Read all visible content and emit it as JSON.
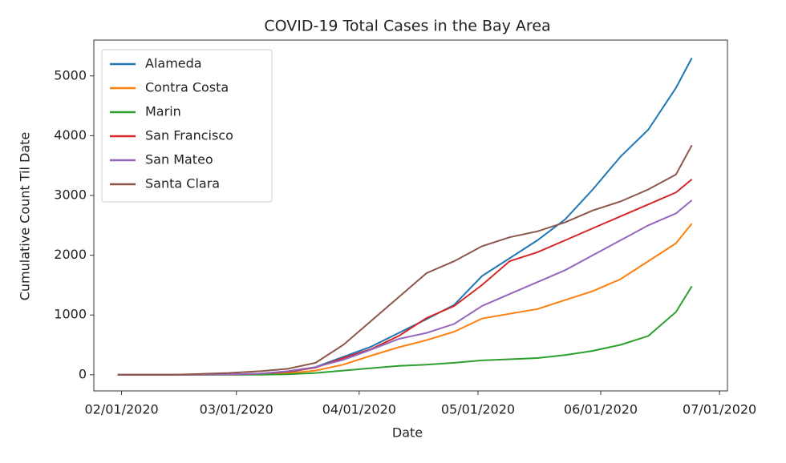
{
  "chart_data": {
    "type": "line",
    "title": "COVID-19 Total Cases in the Bay Area",
    "xlabel": "Date",
    "ylabel": "Cumulative Count Til Date",
    "x": [
      "2020-01-31",
      "2020-02-14",
      "2020-02-28",
      "2020-03-07",
      "2020-03-14",
      "2020-03-21",
      "2020-03-28",
      "2020-04-04",
      "2020-04-11",
      "2020-04-18",
      "2020-04-25",
      "2020-05-02",
      "2020-05-09",
      "2020-05-16",
      "2020-05-23",
      "2020-05-30",
      "2020-06-06",
      "2020-06-13",
      "2020-06-20",
      "2020-06-24"
    ],
    "series": [
      {
        "name": "Alameda",
        "color": "#1f77b4",
        "values": [
          0,
          0,
          5,
          15,
          40,
          130,
          300,
          470,
          700,
          930,
          1170,
          1650,
          1950,
          2250,
          2600,
          3100,
          3650,
          4100,
          4800,
          5300
        ]
      },
      {
        "name": "Contra Costa",
        "color": "#ff7f0e",
        "values": [
          0,
          0,
          3,
          10,
          25,
          70,
          170,
          320,
          460,
          580,
          720,
          940,
          1020,
          1100,
          1250,
          1400,
          1600,
          1900,
          2200,
          2530
        ]
      },
      {
        "name": "Marin",
        "color": "#2ca02c",
        "values": [
          0,
          0,
          0,
          2,
          8,
          30,
          70,
          110,
          150,
          170,
          200,
          240,
          260,
          280,
          330,
          400,
          500,
          650,
          1050,
          1480
        ]
      },
      {
        "name": "San Francisco",
        "color": "#d62728",
        "values": [
          0,
          0,
          5,
          20,
          50,
          120,
          280,
          430,
          650,
          950,
          1150,
          1500,
          1900,
          2050,
          2250,
          2450,
          2650,
          2850,
          3050,
          3270
        ]
      },
      {
        "name": "San Mateo",
        "color": "#9467bd",
        "values": [
          0,
          0,
          5,
          20,
          60,
          130,
          250,
          420,
          600,
          700,
          850,
          1150,
          1350,
          1550,
          1750,
          2000,
          2250,
          2500,
          2700,
          2920
        ]
      },
      {
        "name": "Santa Clara",
        "color": "#8c564b",
        "values": [
          0,
          0,
          30,
          60,
          100,
          200,
          500,
          900,
          1300,
          1700,
          1900,
          2150,
          2300,
          2400,
          2550,
          2750,
          2900,
          3100,
          3350,
          3840
        ]
      }
    ],
    "xlim": [
      "2020-01-25",
      "2020-07-03"
    ],
    "xticks": [
      {
        "value": "2020-02-01",
        "label": "02/01/2020"
      },
      {
        "value": "2020-03-01",
        "label": "03/01/2020"
      },
      {
        "value": "2020-04-01",
        "label": "04/01/2020"
      },
      {
        "value": "2020-05-01",
        "label": "05/01/2020"
      },
      {
        "value": "2020-06-01",
        "label": "06/01/2020"
      },
      {
        "value": "2020-07-01",
        "label": "07/01/2020"
      }
    ],
    "ylim": [
      -270,
      5600
    ],
    "yticks": [
      0,
      1000,
      2000,
      3000,
      4000,
      5000
    ],
    "legend": "upper left"
  }
}
